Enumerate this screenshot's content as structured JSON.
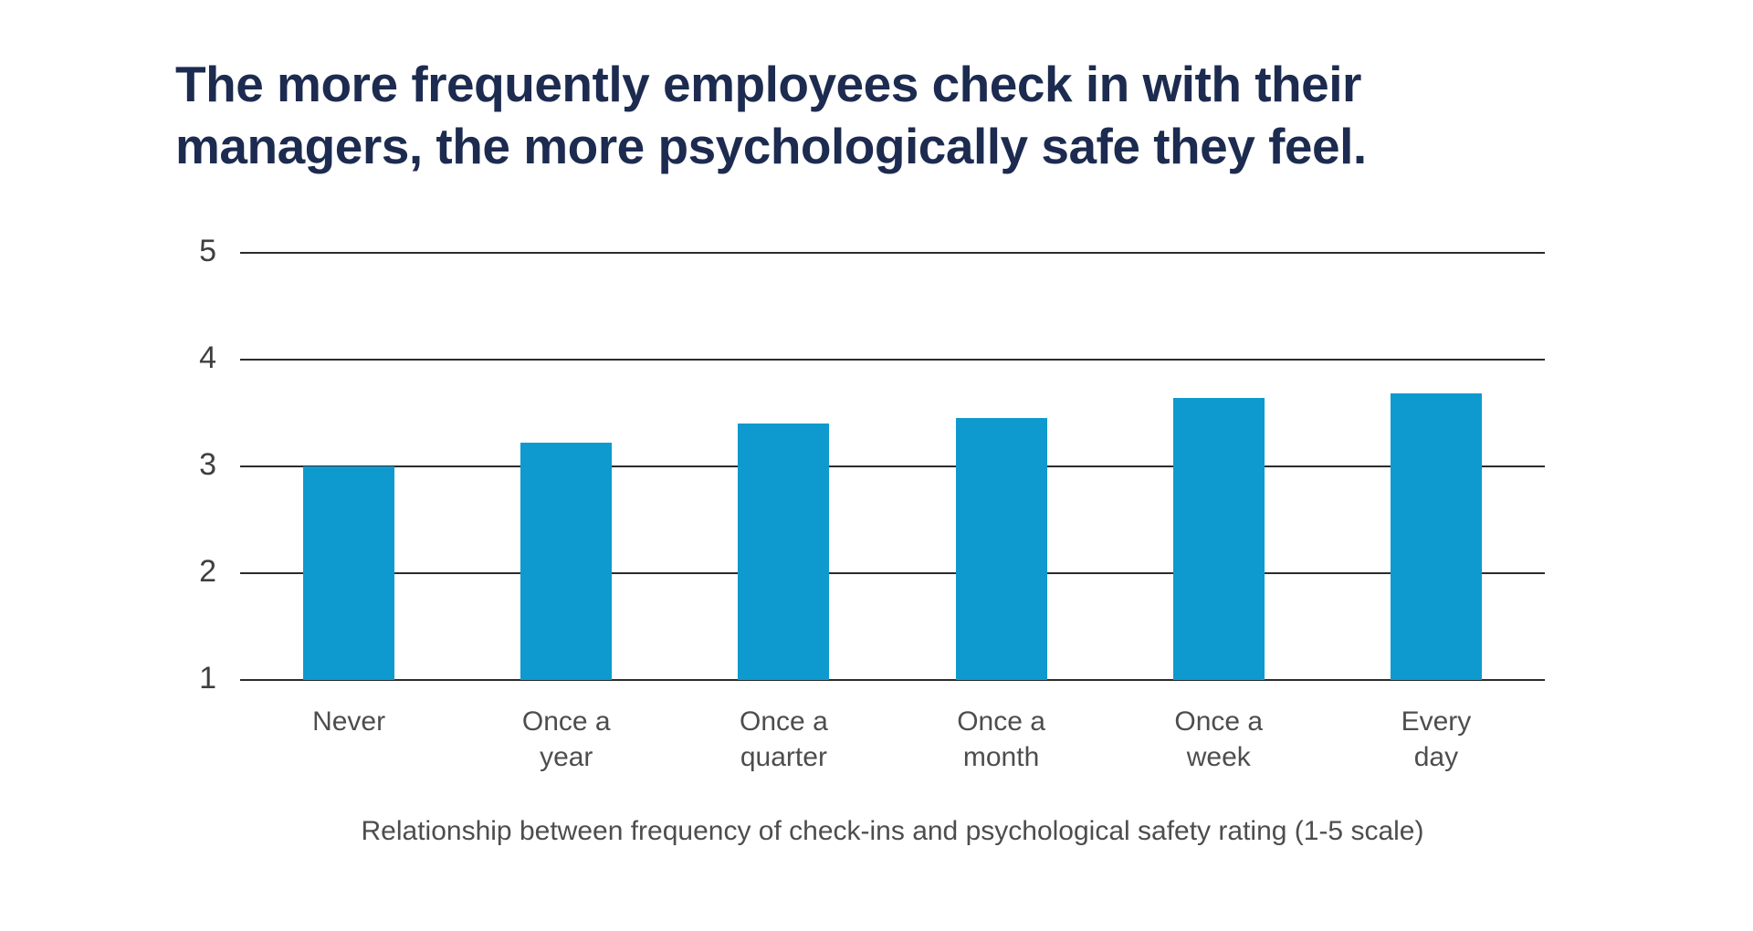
{
  "page": {
    "background_color": "#ffffff"
  },
  "title": {
    "line1": "The more frequently employees check in with their",
    "line2": "managers, the more psychologically safe they feel.",
    "color": "#1c2b4f"
  },
  "chart_data": {
    "type": "bar",
    "title": "The more frequently employees check in with their managers, the more psychologically safe they feel.",
    "caption": "Relationship between frequency of check-ins and psychological safety rating (1-5 scale)",
    "categories": [
      "Never",
      "Once a\nyear",
      "Once a\nquarter",
      "Once a\nmonth",
      "Once a\nweek",
      "Every\nday"
    ],
    "values": [
      3.0,
      3.22,
      3.4,
      3.45,
      3.64,
      3.68
    ],
    "xlabel": "",
    "ylabel": "",
    "ylim": [
      1,
      5
    ],
    "yticks": [
      5,
      4,
      3,
      2,
      1
    ],
    "grid": true,
    "legend": false,
    "bar_color": "#0e9ace",
    "gridline_color": "#2b2b2b",
    "tick_label_color": "#3f3f3f",
    "category_label_color": "#4d4d4d"
  }
}
